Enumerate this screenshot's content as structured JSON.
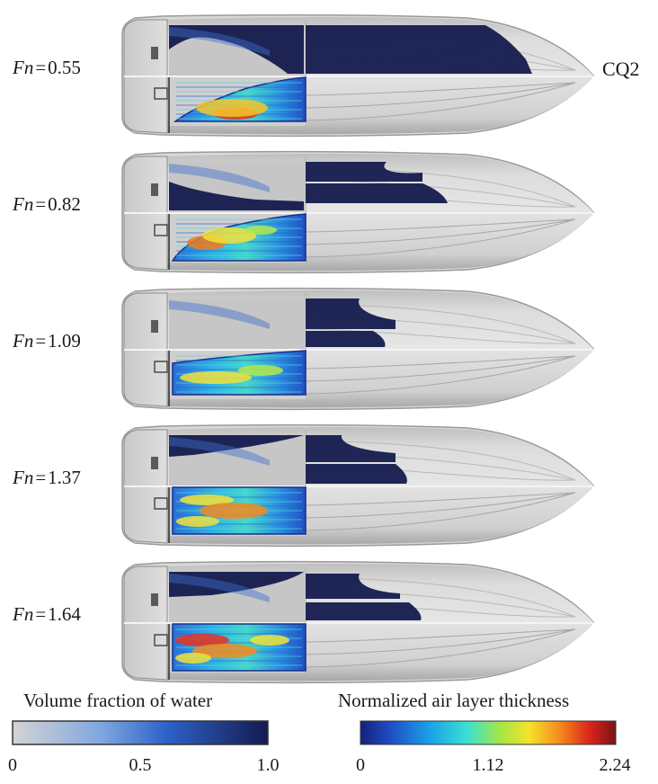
{
  "corner_label": "CQ2",
  "cases": [
    {
      "fn_symbol": "Fn",
      "eq": "=",
      "value": "0.55"
    },
    {
      "fn_symbol": "Fn",
      "eq": "=",
      "value": "0.82"
    },
    {
      "fn_symbol": "Fn",
      "eq": "=",
      "value": "1.09"
    },
    {
      "fn_symbol": "Fn",
      "eq": "=",
      "value": "1.37"
    },
    {
      "fn_symbol": "Fn",
      "eq": "=",
      "value": "1.64"
    }
  ],
  "legend_water": {
    "title": "Volume fraction of water",
    "ticks": [
      "0",
      "0.5",
      "1.0"
    ],
    "colors": [
      "#d4d4d4",
      "#5a8fd8",
      "#1b3a9a",
      "#141b4e"
    ]
  },
  "legend_air": {
    "title": "Normalized air layer thickness",
    "ticks": [
      "0",
      "1.12",
      "2.24"
    ],
    "colors": [
      "#15207a",
      "#1e5fd0",
      "#1aa6e8",
      "#3ce0d0",
      "#b0e840",
      "#f4e32a",
      "#f58a1d",
      "#d9241b",
      "#7a1216"
    ]
  }
}
